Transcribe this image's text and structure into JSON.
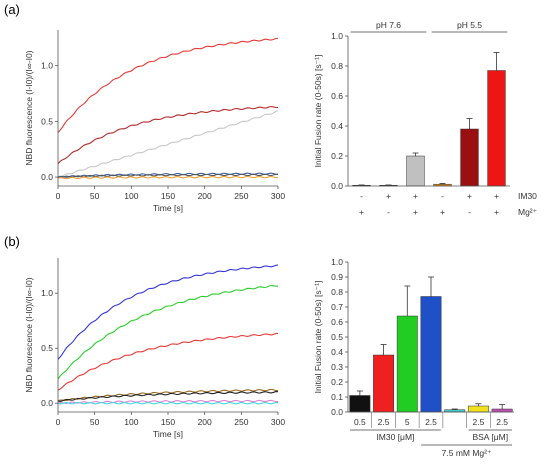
{
  "panels": {
    "a": "(a)",
    "b": "(b)"
  },
  "chart_data": [
    {
      "id": "a_left",
      "type": "line",
      "xlabel": "Time [s]",
      "ylabel": "NBD fluorescence (I-I0)/(I∞-I0)",
      "xlim": [
        0,
        300
      ],
      "ylim": [
        -0.08,
        1.32
      ],
      "xticks": [
        "0",
        "50",
        "100",
        "150",
        "200",
        "250",
        "300"
      ],
      "yticks": [
        "0.0",
        "0.5",
        "1.0"
      ],
      "series": [
        {
          "color": "#e83a36",
          "curve": {
            "kind": "exp",
            "y0": 0.4,
            "y1": 1.24,
            "t": 100
          }
        },
        {
          "color": "#b52a2a",
          "curve": {
            "kind": "exp",
            "y0": 0.12,
            "y1": 0.63,
            "t": 100
          }
        },
        {
          "color": "#c8c8c8",
          "curve": {
            "kind": "lin",
            "y0": 0.0,
            "y1": 0.59
          }
        },
        {
          "color": "#3a5fa0",
          "curve": {
            "kind": "exp",
            "y0": 0.0,
            "y1": 0.03,
            "t": 80
          }
        },
        {
          "color": "#555555",
          "curve": {
            "kind": "exp",
            "y0": 0.0,
            "y1": 0.02,
            "t": 80
          }
        },
        {
          "color": "#f0a030",
          "curve": {
            "kind": "exp",
            "y0": -0.01,
            "y1": 0.0,
            "t": 80
          }
        }
      ]
    },
    {
      "id": "a_right",
      "type": "bar",
      "ylabel": "Initial Fusion rate (0-50s) [s⁻¹]",
      "ylim": [
        0,
        1.0
      ],
      "yticks": [
        "0.0",
        "0.2",
        "0.4",
        "0.6",
        "0.8",
        "1.0"
      ],
      "values": [
        0.005,
        0.005,
        0.2,
        0.012,
        0.38,
        0.77
      ],
      "errors": [
        0.002,
        0.002,
        0.02,
        0.005,
        0.07,
        0.12
      ],
      "colors": [
        "#222222",
        "#555555",
        "#c0c0c0",
        "#e08a20",
        "#9a1010",
        "#ee1515"
      ],
      "groups": [
        {
          "label": "pH 7.6",
          "from": 0,
          "to": 2
        },
        {
          "label": "pH 5.5",
          "from": 3,
          "to": 5
        }
      ],
      "rows": [
        {
          "label": "IM30",
          "signs": [
            "-",
            "+",
            "+",
            "-",
            "+",
            "+"
          ]
        },
        {
          "label": "Mg²⁺",
          "signs": [
            "+",
            "-",
            "+",
            "+",
            "-",
            "+"
          ]
        }
      ]
    },
    {
      "id": "b_left",
      "type": "line",
      "xlabel": "Time [s]",
      "ylabel": "NBD fluorescence (I-I0)/(I∞-I0)",
      "xlim": [
        0,
        300
      ],
      "ylim": [
        -0.08,
        1.32
      ],
      "xticks": [
        "0",
        "50",
        "100",
        "150",
        "200",
        "250",
        "300"
      ],
      "yticks": [
        "0.0",
        "0.5",
        "1.0"
      ],
      "series": [
        {
          "color": "#3535d8",
          "curve": {
            "kind": "exp",
            "y0": 0.4,
            "y1": 1.25,
            "t": 100
          }
        },
        {
          "color": "#2ad02a",
          "curve": {
            "kind": "exp",
            "y0": 0.22,
            "y1": 1.07,
            "t": 120
          }
        },
        {
          "color": "#e83a36",
          "curve": {
            "kind": "exp",
            "y0": 0.12,
            "y1": 0.63,
            "t": 110
          }
        },
        {
          "color": "#9a6a20",
          "curve": {
            "kind": "exp",
            "y0": 0.02,
            "y1": 0.12,
            "t": 120
          }
        },
        {
          "color": "#222222",
          "curve": {
            "kind": "exp",
            "y0": 0.02,
            "y1": 0.1,
            "t": 120
          }
        },
        {
          "color": "#e080d0",
          "curve": {
            "kind": "exp",
            "y0": 0.0,
            "y1": 0.02,
            "t": 80
          }
        },
        {
          "color": "#40d8e0",
          "curve": {
            "kind": "exp",
            "y0": 0.0,
            "y1": 0.0,
            "t": 80
          }
        }
      ]
    },
    {
      "id": "b_right",
      "type": "bar",
      "ylabel": "Initial Fusion rate (0-50s) [s⁻¹]",
      "ylim": [
        0,
        1.0
      ],
      "yticks": [
        "0.0",
        "0.1",
        "0.2",
        "0.3",
        "0.4",
        "0.5",
        "0.6",
        "0.7",
        "0.8",
        "0.9",
        "1.0"
      ],
      "values": [
        0.11,
        0.38,
        0.64,
        0.77,
        0.015,
        0.04,
        0.02
      ],
      "errors": [
        0.03,
        0.07,
        0.2,
        0.13,
        0.005,
        0.015,
        0.03
      ],
      "colors": [
        "#111111",
        "#ee2020",
        "#22cc22",
        "#2050c8",
        "#40c8c8",
        "#f0e020",
        "#c050b0"
      ],
      "categories": [
        "0.5",
        "2.5",
        "5",
        "2.5",
        "",
        "2.5",
        "2.5"
      ],
      "groups_bottom": [
        {
          "label": "IM30 [μM]",
          "from": 0,
          "to": 3
        },
        {
          "label": "BSA [μM]",
          "from": 5,
          "to": 6
        }
      ],
      "condition": {
        "label": "7.5 mM Mg²⁺",
        "from": 3,
        "to": 6
      }
    }
  ]
}
